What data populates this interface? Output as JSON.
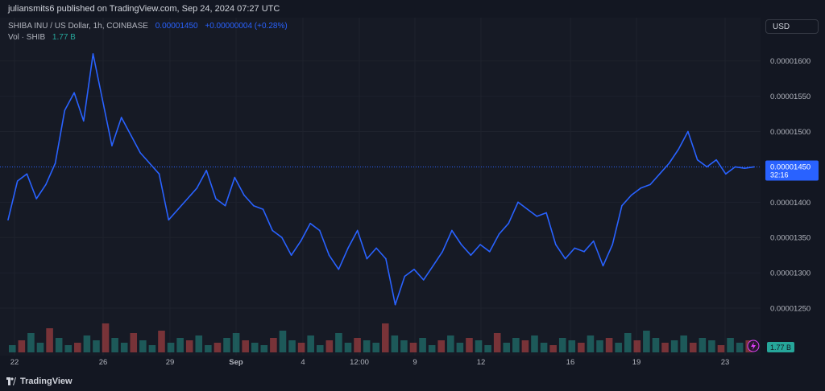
{
  "publisher": "juliansmits6 published on TradingView.com, Sep 24, 2024 07:27 UTC",
  "legend": {
    "symbol": "SHIBA INU / US Dollar, 1h, COINBASE",
    "price": "0.00001450",
    "change": "+0.00000004 (+0.28%)",
    "vol_label": "Vol · SHIB",
    "vol_value": "1.77 B"
  },
  "currency": "USD",
  "last_price_label": "0.00001450",
  "countdown": "32:16",
  "volume_badge": "1.77 B",
  "brand": "TradingView",
  "colors": {
    "line": "#2962ff",
    "vol_up": "#26a69a",
    "vol_down": "#ef5350",
    "last_price_bg": "#2962ff"
  },
  "chart_data": {
    "type": "line",
    "series": [
      {
        "values": [
          1.375e-05,
          1.43e-05,
          1.44e-05,
          1.405e-05,
          1.425e-05,
          1.455e-05,
          1.53e-05,
          1.555e-05,
          1.515e-05,
          1.61e-05,
          1.545e-05,
          1.48e-05,
          1.52e-05,
          1.495e-05,
          1.47e-05,
          1.455e-05,
          1.44e-05,
          1.375e-05,
          1.39e-05,
          1.405e-05,
          1.42e-05,
          1.445e-05,
          1.405e-05,
          1.395e-05,
          1.435e-05,
          1.41e-05,
          1.395e-05,
          1.39e-05,
          1.36e-05,
          1.35e-05,
          1.325e-05,
          1.345e-05,
          1.37e-05,
          1.36e-05,
          1.325e-05,
          1.305e-05,
          1.335e-05,
          1.36e-05,
          1.32e-05,
          1.335e-05,
          1.32e-05,
          1.255e-05,
          1.295e-05,
          1.305e-05,
          1.29e-05,
          1.31e-05,
          1.33e-05,
          1.36e-05,
          1.34e-05,
          1.325e-05,
          1.34e-05,
          1.33e-05,
          1.355e-05,
          1.37e-05,
          1.4e-05,
          1.39e-05,
          1.38e-05,
          1.385e-05,
          1.34e-05,
          1.32e-05,
          1.335e-05,
          1.33e-05,
          1.345e-05,
          1.31e-05,
          1.34e-05,
          1.395e-05,
          1.41e-05,
          1.42e-05,
          1.425e-05,
          1.44e-05,
          1.455e-05,
          1.475e-05,
          1.5e-05,
          1.46e-05,
          1.45e-05,
          1.46e-05,
          1.44e-05,
          1.45e-05,
          1.448e-05,
          1.45e-05
        ],
        "x_ticks": [
          "22",
          "26",
          "29",
          "Sep",
          "4",
          "12:00",
          "9",
          "12",
          "16",
          "19",
          "23"
        ]
      }
    ],
    "y_ticks": [
      "0.00001600",
      "0.00001550",
      "0.00001500",
      "0.00001400",
      "0.00001350",
      "0.00001300",
      "0.00001250"
    ],
    "ylim": [
      1.225e-05,
      1.635e-05
    ],
    "volume": [
      3,
      5,
      8,
      4,
      10,
      6,
      3,
      4,
      7,
      5,
      12,
      6,
      4,
      8,
      5,
      3,
      9,
      4,
      6,
      5,
      7,
      3,
      4,
      6,
      8,
      5,
      4,
      3,
      6,
      9,
      5,
      4,
      7,
      3,
      5,
      8,
      4,
      6,
      5,
      4,
      12,
      7,
      5,
      4,
      6,
      3,
      5,
      7,
      4,
      6,
      5,
      3,
      8,
      4,
      6,
      5,
      7,
      4,
      3,
      6,
      5,
      4,
      7,
      5,
      6,
      4,
      8,
      5,
      9,
      6,
      4,
      5,
      7,
      4,
      6,
      5,
      3,
      6,
      4,
      5
    ],
    "grid": true
  }
}
